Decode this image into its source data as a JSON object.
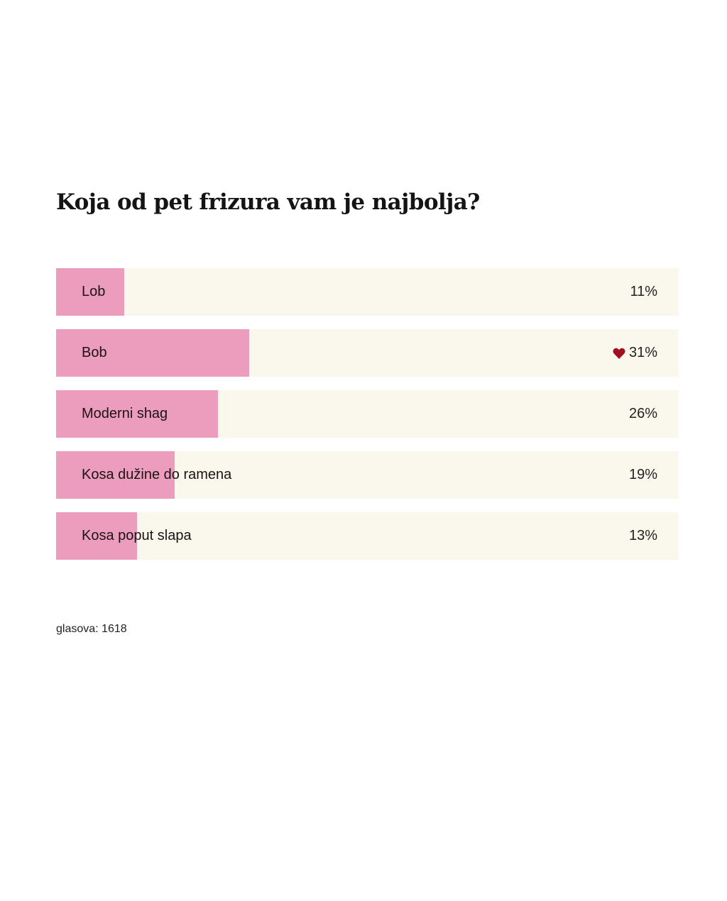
{
  "poll": {
    "title": "Koja od pet frizura vam je najbolja?",
    "options": [
      {
        "label": "Lob",
        "percent": 11,
        "percent_label": "11%",
        "voted": false
      },
      {
        "label": "Bob",
        "percent": 31,
        "percent_label": "31%",
        "voted": true
      },
      {
        "label": "Moderni shag",
        "percent": 26,
        "percent_label": "26%",
        "voted": false
      },
      {
        "label": "Kosa dužine do ramena",
        "percent": 19,
        "percent_label": "19%",
        "voted": false
      },
      {
        "label": "Kosa poput slapa",
        "percent": 13,
        "percent_label": "13%",
        "voted": false
      }
    ],
    "votes_label": "glasova: 1618",
    "voted_icon": "heart-icon"
  },
  "colors": {
    "bar_fill": "#ec9cbc",
    "bar_track": "#faf7ed",
    "heart": "#a0101e",
    "text": "#1a1a1a"
  }
}
